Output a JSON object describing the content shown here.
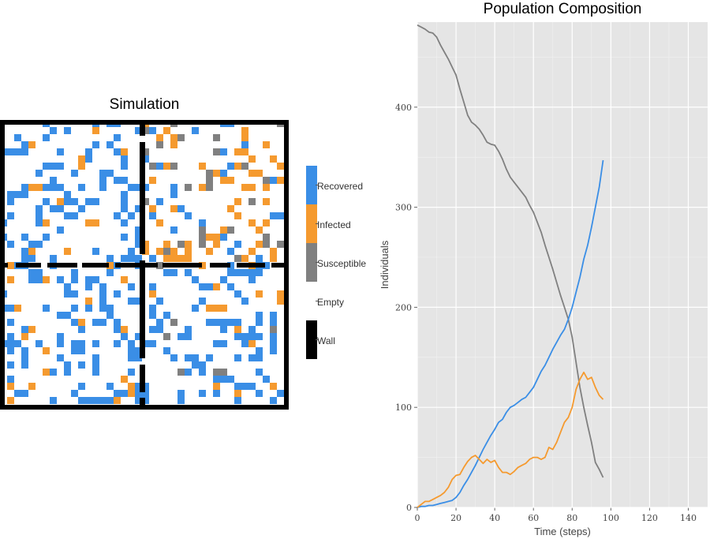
{
  "simulation": {
    "title": "Simulation",
    "legend": [
      {
        "label": "Recovered",
        "color": "#3a8ee6"
      },
      {
        "label": "Infected",
        "color": "#f59a2f"
      },
      {
        "label": "Susceptible",
        "color": "#808080"
      },
      {
        "label": "Empty",
        "color": "#ffffff"
      },
      {
        "label": "Wall",
        "color": "#000000"
      }
    ]
  },
  "chart_data": {
    "type": "line",
    "title": "Population Composition",
    "xlabel": "Time (steps)",
    "ylabel": "Individuals",
    "xlim": [
      0,
      150
    ],
    "ylim": [
      0,
      485
    ],
    "xticks": [
      0,
      20,
      40,
      60,
      80,
      100,
      120,
      140
    ],
    "yticks": [
      0,
      100,
      200,
      300,
      400
    ],
    "grid": true,
    "series": [
      {
        "color": "#808080",
        "x": [
          0,
          2,
          4,
          6,
          8,
          10,
          12,
          14,
          16,
          18,
          20,
          22,
          24,
          26,
          28,
          30,
          32,
          34,
          36,
          38,
          40,
          42,
          44,
          46,
          48,
          50,
          52,
          54,
          56,
          58,
          60,
          62,
          64,
          66,
          68,
          70,
          72,
          74,
          76,
          78,
          80,
          82,
          84,
          86,
          88,
          90,
          92,
          94,
          96
        ],
        "values": [
          482,
          480,
          478,
          475,
          474,
          470,
          462,
          455,
          448,
          440,
          432,
          418,
          405,
          392,
          385,
          382,
          378,
          372,
          365,
          363,
          362,
          356,
          348,
          338,
          330,
          325,
          320,
          315,
          310,
          302,
          295,
          285,
          275,
          262,
          250,
          238,
          225,
          212,
          200,
          188,
          170,
          145,
          120,
          100,
          82,
          65,
          45,
          38,
          30
        ]
      },
      {
        "color": "#3a8ee6",
        "x": [
          0,
          2,
          4,
          6,
          8,
          10,
          12,
          14,
          16,
          18,
          20,
          22,
          24,
          26,
          28,
          30,
          32,
          34,
          36,
          38,
          40,
          42,
          44,
          46,
          48,
          50,
          52,
          54,
          56,
          58,
          60,
          62,
          64,
          66,
          68,
          70,
          72,
          74,
          76,
          78,
          80,
          82,
          84,
          86,
          88,
          90,
          92,
          94,
          96
        ],
        "values": [
          0,
          1,
          1,
          2,
          2,
          3,
          4,
          5,
          6,
          7,
          10,
          15,
          22,
          28,
          35,
          42,
          50,
          58,
          65,
          72,
          78,
          85,
          88,
          95,
          100,
          102,
          105,
          108,
          110,
          115,
          120,
          128,
          136,
          142,
          150,
          158,
          165,
          172,
          178,
          188,
          200,
          215,
          230,
          248,
          262,
          280,
          300,
          320,
          347
        ]
      },
      {
        "color": "#f59a2f",
        "x": [
          0,
          2,
          4,
          6,
          8,
          10,
          12,
          14,
          16,
          18,
          20,
          22,
          24,
          26,
          28,
          30,
          32,
          34,
          36,
          38,
          40,
          42,
          44,
          46,
          48,
          50,
          52,
          54,
          56,
          58,
          60,
          62,
          64,
          66,
          68,
          70,
          72,
          74,
          76,
          78,
          80,
          82,
          84,
          86,
          88,
          90,
          92,
          94,
          96
        ],
        "values": [
          0,
          3,
          6,
          6,
          8,
          10,
          12,
          15,
          20,
          28,
          32,
          33,
          40,
          46,
          50,
          52,
          48,
          44,
          48,
          45,
          47,
          40,
          35,
          35,
          33,
          36,
          40,
          42,
          44,
          48,
          50,
          50,
          48,
          50,
          60,
          58,
          65,
          75,
          85,
          90,
          100,
          118,
          128,
          135,
          128,
          130,
          120,
          112,
          108
        ]
      }
    ]
  }
}
